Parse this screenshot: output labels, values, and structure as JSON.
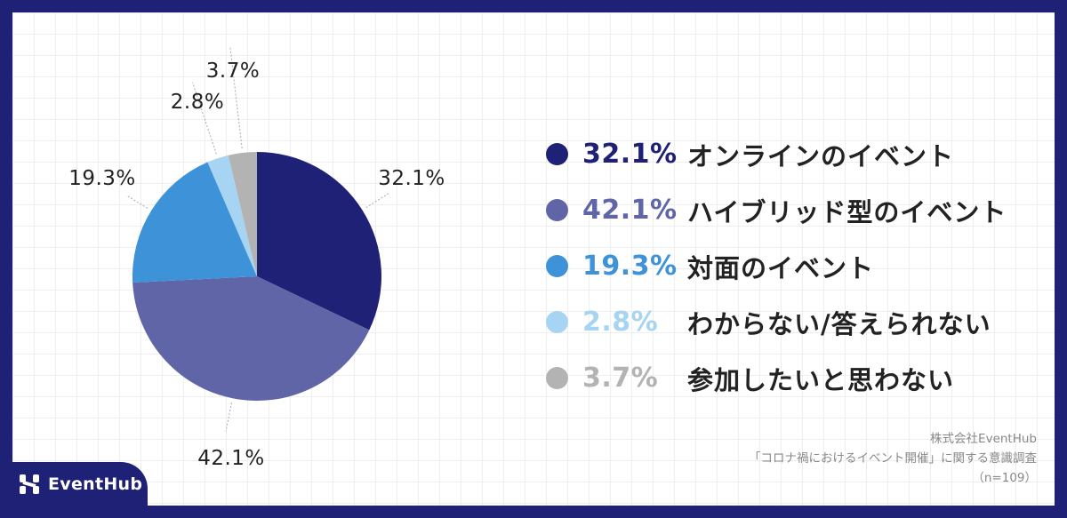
{
  "chart_data": {
    "type": "pie",
    "series": [
      {
        "name": "オンラインのイベント",
        "value": 32.1,
        "label": "32.1%",
        "color": "#1e2176"
      },
      {
        "name": "ハイブリッド型のイベント",
        "value": 42.1,
        "label": "42.1%",
        "color": "#6065a8"
      },
      {
        "name": "対面のイベント",
        "value": 19.3,
        "label": "19.3%",
        "color": "#3e92d8"
      },
      {
        "name": "わからない/答えられない",
        "value": 2.8,
        "label": "2.8%",
        "color": "#a6d4f2"
      },
      {
        "name": "参加したいと思わない",
        "value": 3.7,
        "label": "3.7%",
        "color": "#b3b3b3"
      }
    ],
    "start_angle": "12 o'clock",
    "direction": "clockwise",
    "legend_position": "right"
  },
  "source": {
    "company": "株式会社EventHub",
    "survey": "「コロナ禍におけるイベント開催」に関する意識調査",
    "sample": "（n=109）"
  },
  "logo": {
    "text": "EventHub",
    "icon": "eventhub-logo-icon"
  }
}
